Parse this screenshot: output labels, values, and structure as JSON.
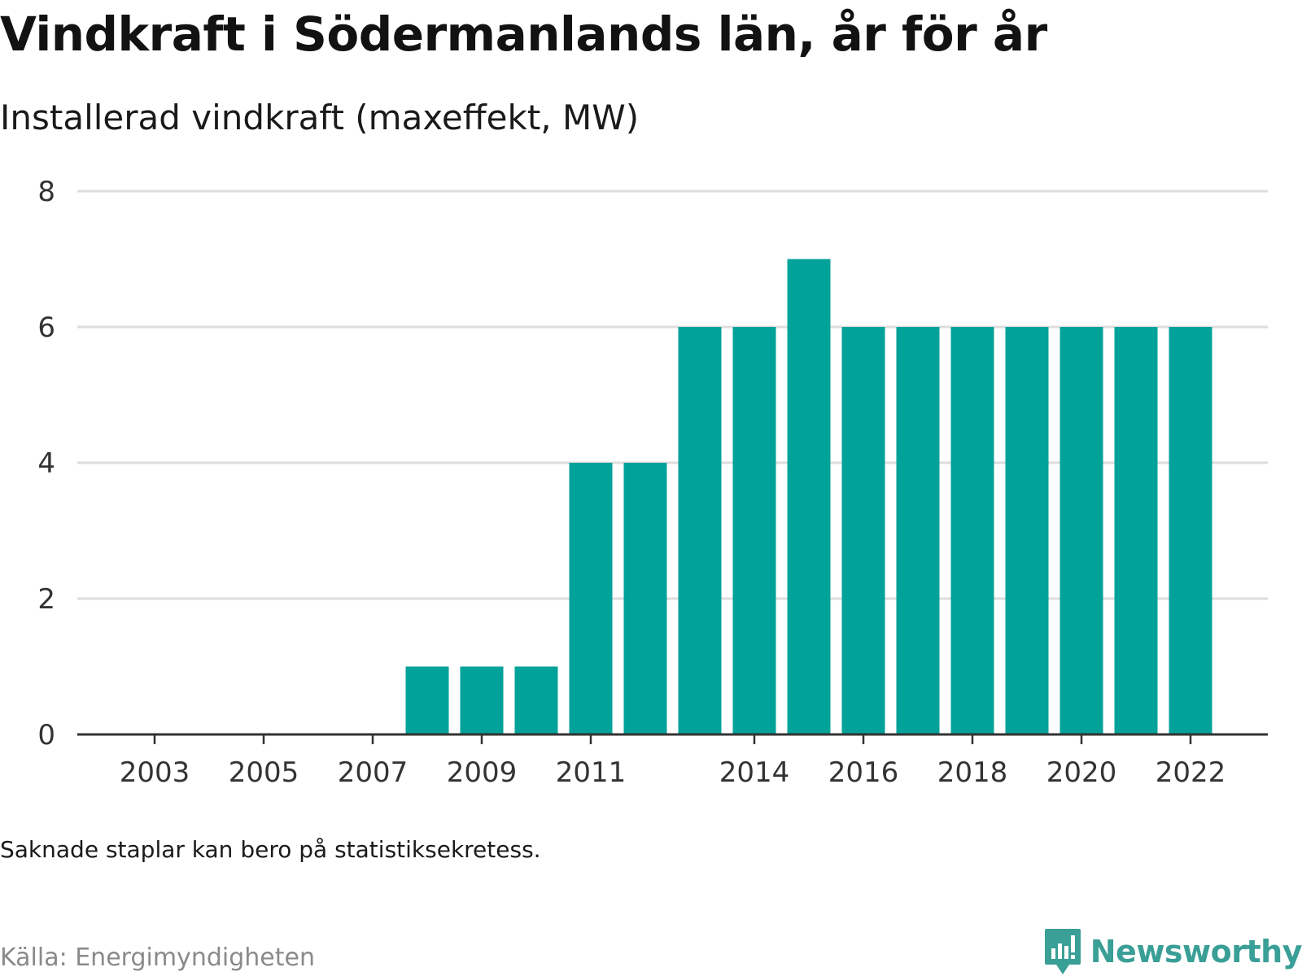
{
  "header": {
    "title": "Vindkraft i Södermanlands län, år för år",
    "subtitle": "Installerad vindkraft (maxeffekt, MW)"
  },
  "footer": {
    "note": "Saknade staplar kan bero på statistiksekretess.",
    "source": "Källa: Energimyndigheten",
    "brand": "Newsworthy"
  },
  "colors": {
    "bar": "#00a29a",
    "grid": "#dddddd",
    "axis": "#333333",
    "brand": "#3a9f96"
  },
  "chart_data": {
    "type": "bar",
    "title": "Vindkraft i Södermanlands län, år för år",
    "subtitle": "Installerad vindkraft (maxeffekt, MW)",
    "xlabel": "",
    "ylabel": "",
    "categories": [
      2002,
      2003,
      2004,
      2005,
      2006,
      2007,
      2008,
      2009,
      2010,
      2011,
      2012,
      2013,
      2014,
      2015,
      2016,
      2017,
      2018,
      2019,
      2020,
      2021,
      2022
    ],
    "values": [
      0,
      0,
      0,
      0,
      0,
      0,
      1,
      1,
      1,
      4,
      4,
      6,
      6,
      7,
      6,
      6,
      6,
      6,
      6,
      6,
      6
    ],
    "xticks": [
      2003,
      2005,
      2007,
      2009,
      2011,
      2014,
      2016,
      2018,
      2020,
      2022
    ],
    "yticks": [
      0,
      2,
      4,
      6,
      8
    ],
    "ylim": [
      0,
      8
    ],
    "grid": true,
    "legend": "none"
  }
}
